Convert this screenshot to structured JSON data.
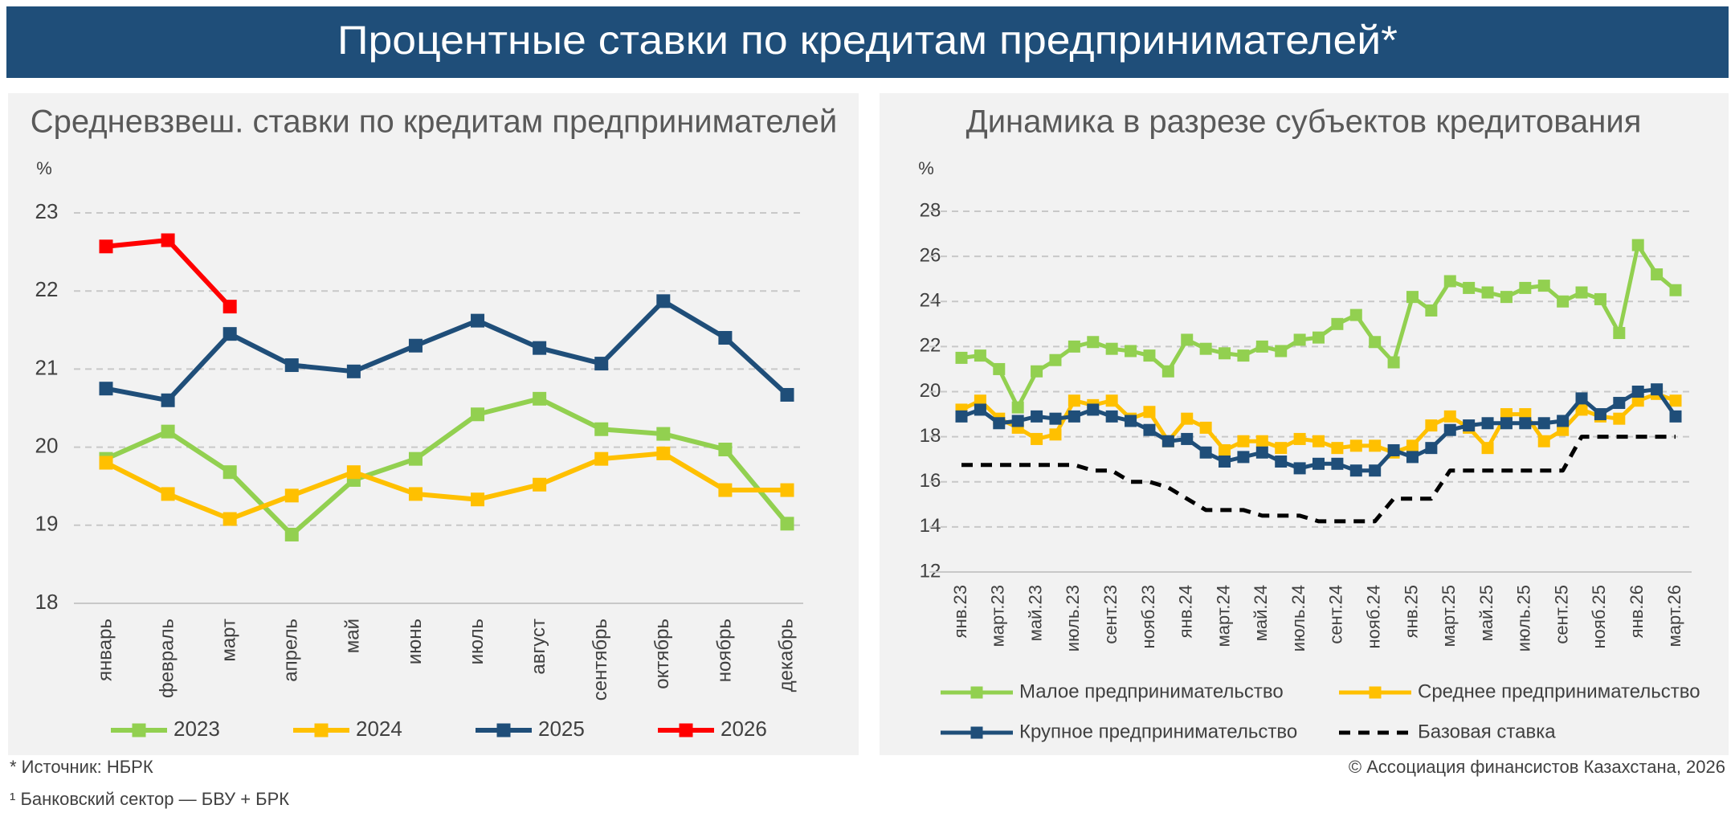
{
  "header": {
    "title": "Процентные ставки по кредитам предпринимателей*"
  },
  "footer": {
    "source": "* Источник: НБРК",
    "note": "¹ Банковский сектор — БВУ + БРК",
    "copyright": "© Ассоциация финансистов Казахстана, 2026"
  },
  "chart_data": [
    {
      "type": "line",
      "title": "Средневзвеш. ставки по кредитам предпринимателей",
      "ylabel": "%",
      "categories": [
        "январь",
        "февраль",
        "март",
        "апрель",
        "май",
        "июнь",
        "июль",
        "август",
        "сентябрь",
        "октябрь",
        "ноябрь",
        "декабрь"
      ],
      "ylim": [
        18,
        23
      ],
      "yticks": [
        18,
        19,
        20,
        21,
        22,
        23
      ],
      "grid": true,
      "legend": "bottom",
      "series": [
        {
          "name": "2023",
          "color": "#92d050",
          "marker": "square",
          "values": [
            19.85,
            20.2,
            19.68,
            18.88,
            19.58,
            19.85,
            20.42,
            20.62,
            20.23,
            20.17,
            19.97,
            19.02
          ]
        },
        {
          "name": "2024",
          "color": "#ffc000",
          "marker": "square",
          "values": [
            19.8,
            19.4,
            19.08,
            19.38,
            19.68,
            19.4,
            19.33,
            19.52,
            19.85,
            19.92,
            19.45,
            19.45
          ]
        },
        {
          "name": "2025",
          "color": "#1f4e79",
          "marker": "square",
          "values": [
            20.75,
            20.6,
            21.45,
            21.05,
            20.97,
            21.3,
            21.62,
            21.27,
            21.07,
            21.87,
            21.4,
            20.67
          ]
        },
        {
          "name": "2026",
          "color": "#ff0000",
          "marker": "square",
          "values": [
            22.57,
            22.65,
            21.8,
            null,
            null,
            null,
            null,
            null,
            null,
            null,
            null,
            null
          ]
        }
      ]
    },
    {
      "type": "line",
      "title": "Динамика в разрезе субъектов кредитования",
      "ylabel": "%",
      "categories": [
        "янв.23",
        null,
        "март.23",
        null,
        "май.23",
        null,
        "июль.23",
        null,
        "сент.23",
        null,
        "нояб.23",
        null,
        "янв.24",
        null,
        "март.24",
        null,
        "май.24",
        null,
        "июль.24",
        null,
        "сент.24",
        null,
        "нояб.24",
        null,
        "янв.25",
        null,
        "март.25",
        null,
        "май.25",
        null,
        "июль.25",
        null,
        "сент.25",
        null,
        "нояб.25",
        null,
        "янв.26",
        null,
        "март.26"
      ],
      "ylim": [
        12,
        28
      ],
      "yticks": [
        12,
        14,
        16,
        18,
        20,
        22,
        24,
        26,
        28
      ],
      "grid": true,
      "legend": "bottom",
      "series": [
        {
          "name": "Малое предпринимательство",
          "color": "#92d050",
          "marker": "square",
          "values": [
            21.5,
            21.6,
            21.0,
            19.3,
            20.9,
            21.4,
            22.0,
            22.2,
            21.9,
            21.8,
            21.6,
            20.9,
            22.3,
            21.9,
            21.7,
            21.6,
            22.0,
            21.8,
            22.3,
            22.4,
            23.0,
            23.4,
            22.2,
            21.3,
            24.2,
            23.6,
            24.9,
            24.6,
            24.4,
            24.2,
            24.6,
            24.7,
            24.0,
            24.4,
            24.1,
            22.6,
            26.5,
            25.2,
            24.5
          ]
        },
        {
          "name": "Среднее предпринимательство",
          "color": "#ffc000",
          "marker": "square",
          "values": [
            19.2,
            19.6,
            18.8,
            18.4,
            17.9,
            18.1,
            19.6,
            19.4,
            19.6,
            18.8,
            19.1,
            17.8,
            18.8,
            18.4,
            17.4,
            17.8,
            17.8,
            17.5,
            17.9,
            17.8,
            17.5,
            17.6,
            17.6,
            17.3,
            17.6,
            18.5,
            18.9,
            18.4,
            17.5,
            19.0,
            19.0,
            17.8,
            18.3,
            19.2,
            18.9,
            18.8,
            19.6,
            19.9,
            19.6
          ]
        },
        {
          "name": "Крупное предпринимательство",
          "color": "#1f4e79",
          "marker": "square",
          "values": [
            18.9,
            19.2,
            18.6,
            18.7,
            18.9,
            18.8,
            18.9,
            19.2,
            18.9,
            18.7,
            18.3,
            17.8,
            17.9,
            17.3,
            16.9,
            17.1,
            17.3,
            16.9,
            16.6,
            16.8,
            16.8,
            16.5,
            16.5,
            17.4,
            17.1,
            17.5,
            18.3,
            18.5,
            18.6,
            18.6,
            18.6,
            18.6,
            18.7,
            19.7,
            19.0,
            19.5,
            20.0,
            20.1,
            18.9
          ]
        },
        {
          "name": "Базовая ставка",
          "color": "#000000",
          "line_style": "dashed",
          "values": [
            16.75,
            16.75,
            16.75,
            16.75,
            16.75,
            16.75,
            16.75,
            16.5,
            16.5,
            16.0,
            16.0,
            15.75,
            15.25,
            14.75,
            14.75,
            14.75,
            14.5,
            14.5,
            14.5,
            14.25,
            14.25,
            14.25,
            14.25,
            15.25,
            15.25,
            15.25,
            16.5,
            16.5,
            16.5,
            16.5,
            16.5,
            16.5,
            16.5,
            18.0,
            18.0,
            18.0,
            18.0,
            18.0,
            18.0
          ]
        }
      ]
    }
  ]
}
